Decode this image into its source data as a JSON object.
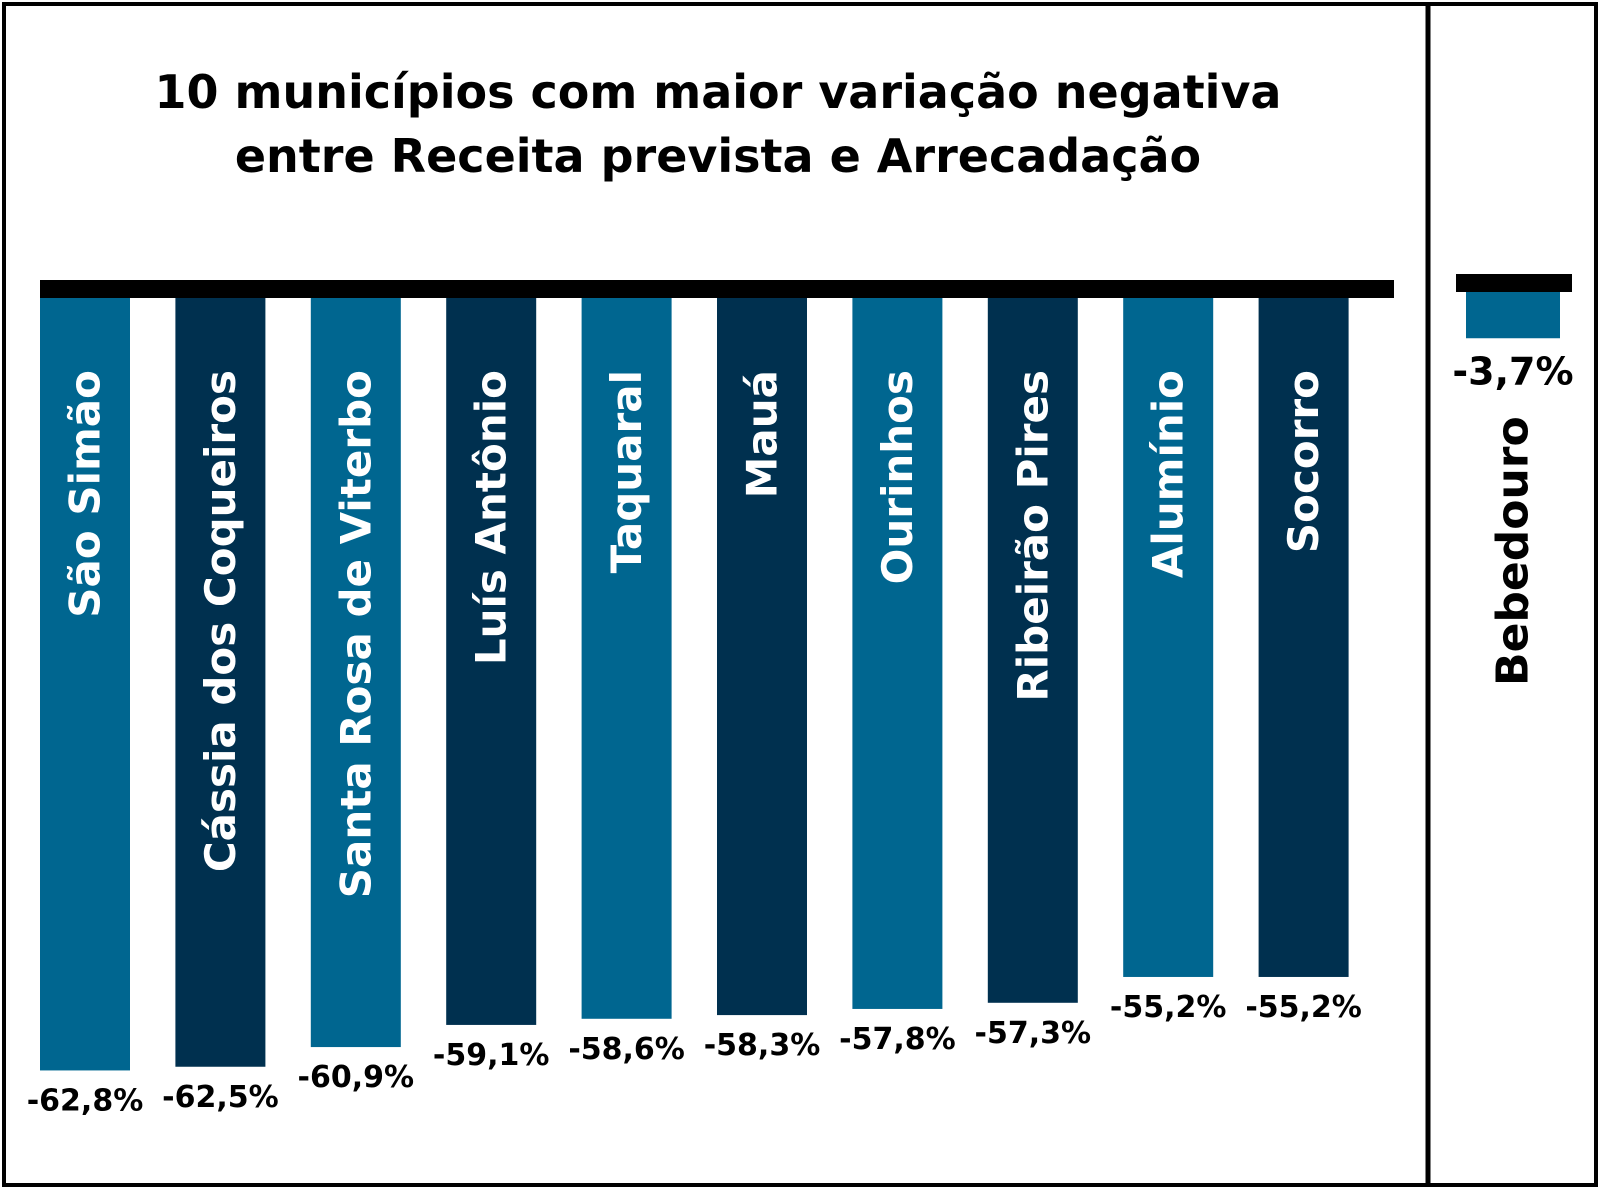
{
  "chart_data": [
    {
      "type": "bar",
      "title": [
        "10 municípios com maior variação negativa",
        "entre Receita prevista e Arrecadação"
      ],
      "categories": [
        "São Simão",
        "Cássia dos Coqueiros",
        "Santa Rosa de Viterbo",
        "Luís Antônio",
        "Taquaral",
        "Mauá",
        "Ourinhos",
        "Ribeirão Pires",
        "Alumínio",
        "Socorro"
      ],
      "values": [
        -62.8,
        -62.5,
        -60.9,
        -59.1,
        -58.6,
        -58.3,
        -57.8,
        -57.3,
        -55.2,
        -55.2
      ],
      "value_labels": [
        "-62,8%",
        "-62,5%",
        "-60,9%",
        "-59,1%",
        "-58,6%",
        "-58,3%",
        "-57,8%",
        "-57,3%",
        "-55,2%",
        "-55,2%"
      ],
      "colors": [
        "#006690",
        "#00304f",
        "#006690",
        "#00304f",
        "#006690",
        "#00304f",
        "#006690",
        "#00304f",
        "#006690",
        "#00304f"
      ],
      "baseline_color": "#000000",
      "xlabel": "",
      "ylabel": "",
      "grid": false,
      "legend": "none"
    },
    {
      "type": "bar",
      "categories": [
        "Bebedouro"
      ],
      "values": [
        -3.7
      ],
      "value_labels": [
        "-3,7%"
      ],
      "colors": [
        "#006690"
      ],
      "baseline_color": "#000000"
    }
  ]
}
